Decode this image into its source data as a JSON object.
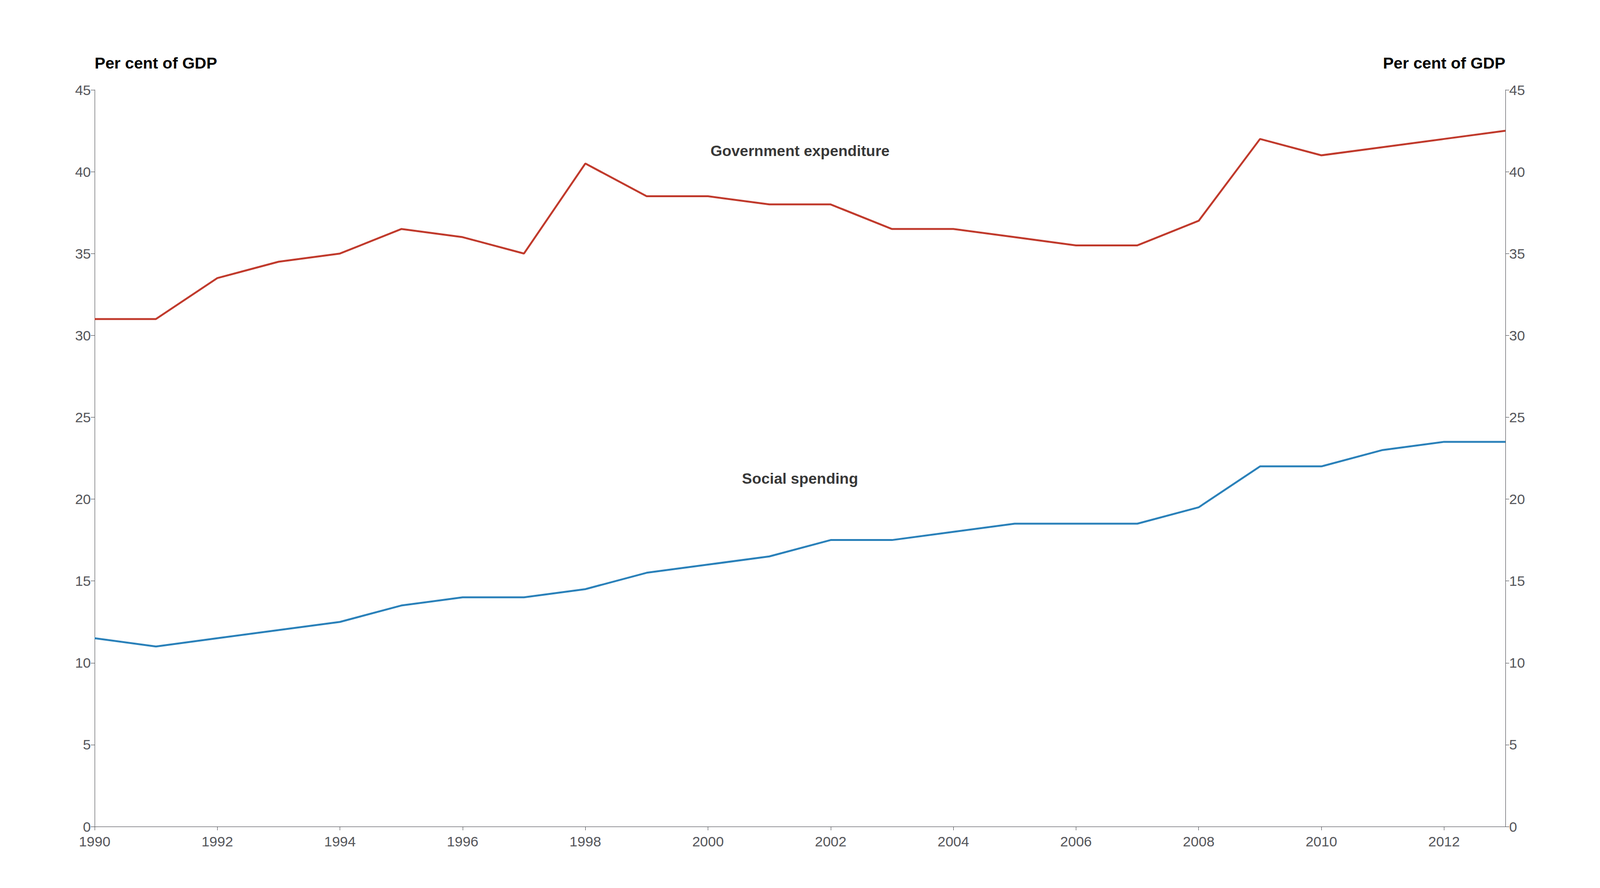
{
  "chart_data": {
    "type": "line",
    "x": [
      1990,
      1991,
      1992,
      1993,
      1994,
      1995,
      1996,
      1997,
      1998,
      1999,
      2000,
      2001,
      2002,
      2003,
      2004,
      2005,
      2006,
      2007,
      2008,
      2009,
      2010,
      2011,
      2012,
      2013
    ],
    "series": [
      {
        "color": "#c0392b",
        "values": [
          31.0,
          31.0,
          33.5,
          34.5,
          35.0,
          36.5,
          36.0,
          35.0,
          40.5,
          38.5,
          38.5,
          38.0,
          38.0,
          36.5,
          36.5,
          36.0,
          35.5,
          35.5,
          37.0,
          42.0,
          41.0,
          41.5,
          42.0,
          42.5
        ]
      },
      {
        "color": "#2980b9",
        "values": [
          11.5,
          11.0,
          11.5,
          12.0,
          12.5,
          13.5,
          14.0,
          14.0,
          14.5,
          15.5,
          16.0,
          16.5,
          17.5,
          17.5,
          18.0,
          18.5,
          18.5,
          18.5,
          19.5,
          22.0,
          22.0,
          23.0,
          23.5,
          23.5
        ]
      }
    ],
    "ylabel": "Per cent of GDP",
    "y2label": "Per cent of GDP",
    "annotations": [
      {
        "text": "Government expenditure",
        "x": 2001.5,
        "y": 40.8
      },
      {
        "text": "Social spending",
        "x": 2001.5,
        "y": 20.8
      }
    ],
    "xlim": [
      1990,
      2013
    ],
    "xticks": [
      1990,
      1992,
      1994,
      1996,
      1998,
      2000,
      2002,
      2004,
      2006,
      2008,
      2010,
      2012
    ],
    "ylim": [
      0,
      45
    ],
    "yticks": [
      0,
      5,
      10,
      15,
      20,
      25,
      30,
      35,
      40,
      45
    ],
    "y2lim": [
      0,
      45
    ],
    "y2ticks": [
      0,
      5,
      10,
      15,
      20,
      25,
      30,
      35,
      40,
      45
    ],
    "grid": false
  }
}
